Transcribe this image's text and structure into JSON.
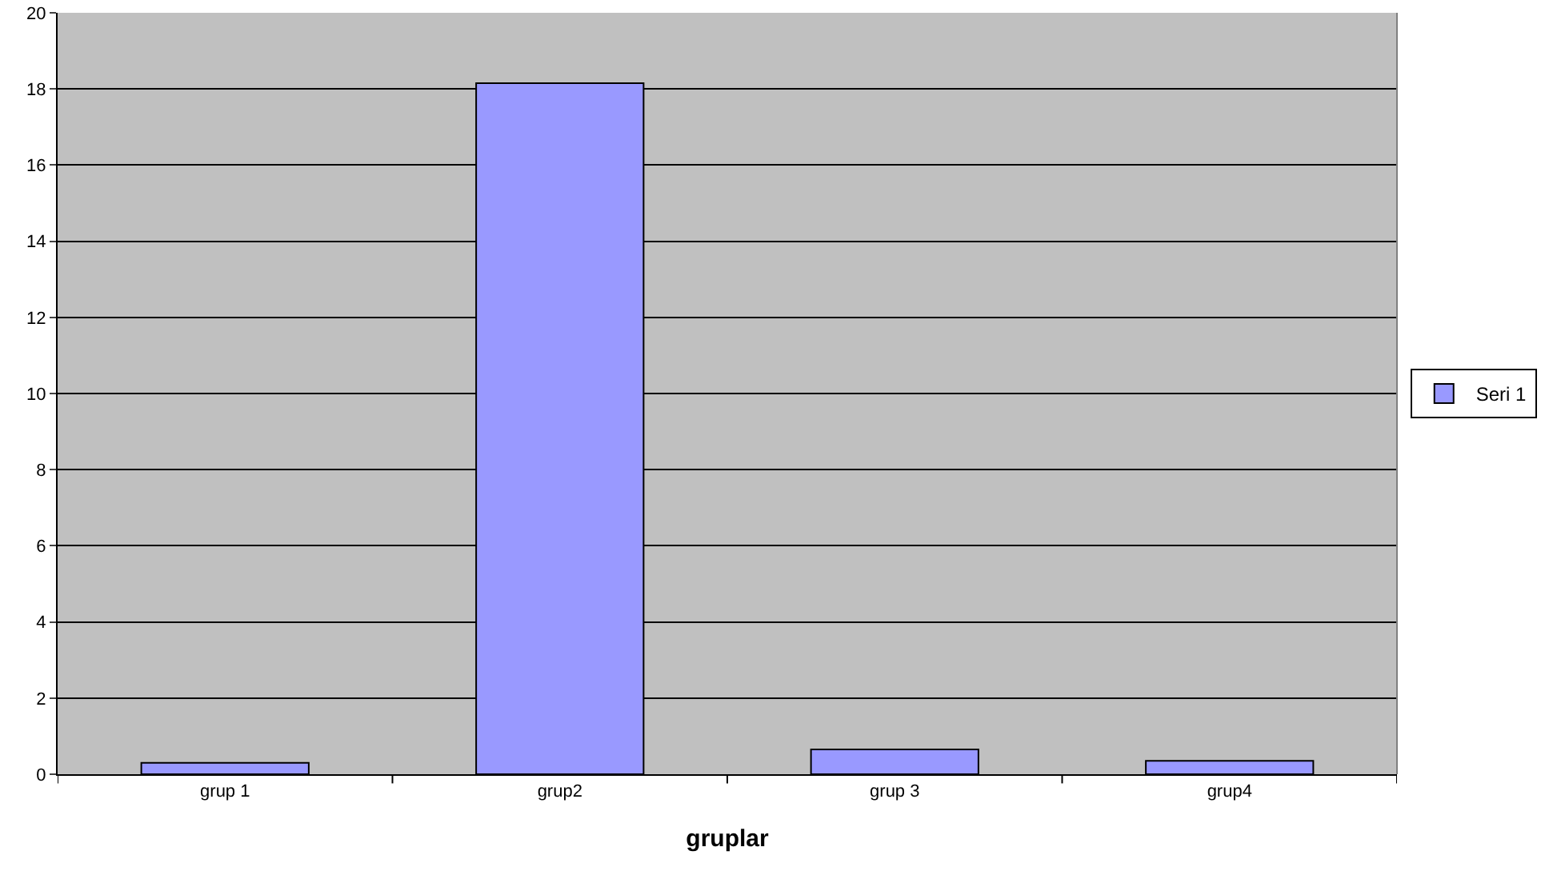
{
  "chart_data": {
    "type": "bar",
    "xlabel": "gruplar",
    "categories": [
      "grup 1",
      "grup2",
      "grup 3",
      "grup4"
    ],
    "series": [
      {
        "name": "Seri 1",
        "color": "#9999ff",
        "values": [
          0.3,
          18.15,
          0.65,
          0.35
        ]
      }
    ],
    "ylim": [
      0,
      20
    ],
    "yticks": [
      0,
      2,
      4,
      6,
      8,
      10,
      12,
      14,
      16,
      18,
      20
    ],
    "grid": "y",
    "legend": "right"
  }
}
